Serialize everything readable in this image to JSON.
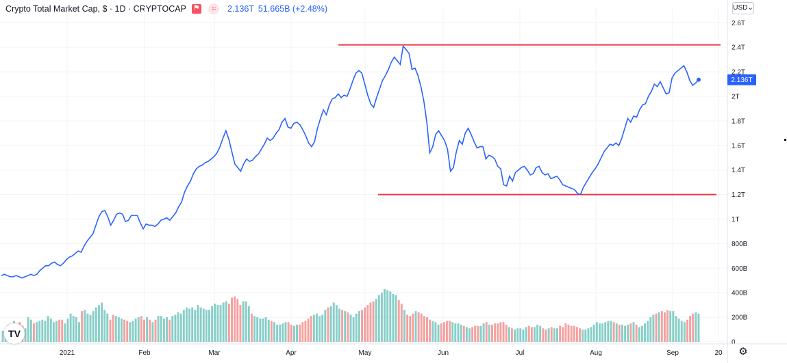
{
  "header": {
    "title": "Crypto Total Market Cap, $ · 1D · CRYPTOCAP",
    "flag_icon": "flag-icon",
    "compare_icon": "compare-icon",
    "price": "2.136T",
    "change": "51.665B (+2.48%)"
  },
  "currency": "USD",
  "last_price_label": "2.136T",
  "logo_text": "TV",
  "colors": {
    "line": "#2962ff",
    "support_resistance": "#f23645",
    "volume_up": "#26a69a",
    "volume_down": "#ef5350",
    "price_tag": "#2962ff"
  },
  "chart_data": {
    "type": "line",
    "x_tick_labels": [
      "2021",
      "Feb",
      "Mar",
      "Apr",
      "May",
      "Jun",
      "Jul",
      "Aug",
      "Sep",
      "20"
    ],
    "y_tick_labels": [
      "0",
      "200B",
      "400B",
      "600B",
      "800B",
      "1T",
      "1.2T",
      "1.4T",
      "1.6T",
      "1.8T",
      "2T",
      "2.2T",
      "2.4T",
      "2.6T"
    ],
    "y_unit": "T (trillion USD)",
    "ylim": [
      0,
      2.6
    ],
    "series": [
      {
        "values": [
          0.54,
          0.55,
          0.54,
          0.53,
          0.53,
          0.54,
          0.53,
          0.52,
          0.53,
          0.54,
          0.55,
          0.54,
          0.55,
          0.58,
          0.6,
          0.62,
          0.62,
          0.64,
          0.65,
          0.63,
          0.62,
          0.64,
          0.67,
          0.69,
          0.7,
          0.72,
          0.74,
          0.73,
          0.78,
          0.82,
          0.85,
          0.88,
          0.95,
          1.02,
          1.06,
          1.07,
          1.02,
          0.95,
          0.99,
          1.04,
          1.05,
          1.04,
          0.98,
          0.99,
          1.03,
          1.03,
          1.03,
          0.97,
          0.92,
          0.96,
          0.95,
          0.95,
          0.94,
          0.96,
          0.99,
          1.0,
          1.01,
          0.99,
          1.02,
          1.05,
          1.1,
          1.14,
          1.22,
          1.27,
          1.31,
          1.37,
          1.41,
          1.43,
          1.44,
          1.46,
          1.47,
          1.49,
          1.51,
          1.54,
          1.59,
          1.66,
          1.72,
          1.65,
          1.55,
          1.45,
          1.42,
          1.39,
          1.45,
          1.49,
          1.47,
          1.48,
          1.51,
          1.53,
          1.57,
          1.61,
          1.66,
          1.64,
          1.66,
          1.7,
          1.73,
          1.79,
          1.82,
          1.75,
          1.74,
          1.78,
          1.79,
          1.77,
          1.73,
          1.68,
          1.62,
          1.59,
          1.63,
          1.74,
          1.82,
          1.89,
          1.85,
          1.93,
          1.98,
          1.99,
          2.02,
          1.99,
          2.01,
          2.0,
          2.06,
          2.13,
          2.19,
          2.21,
          2.19,
          2.1,
          2.01,
          1.94,
          1.91,
          1.99,
          2.06,
          2.13,
          2.17,
          2.22,
          2.28,
          2.32,
          2.29,
          2.26,
          2.41,
          2.38,
          2.35,
          2.22,
          2.23,
          2.17,
          2.08,
          1.96,
          1.79,
          1.54,
          1.59,
          1.69,
          1.72,
          1.68,
          1.64,
          1.57,
          1.39,
          1.42,
          1.55,
          1.64,
          1.61,
          1.7,
          1.74,
          1.69,
          1.63,
          1.58,
          1.59,
          1.59,
          1.49,
          1.52,
          1.51,
          1.49,
          1.43,
          1.41,
          1.28,
          1.27,
          1.35,
          1.31,
          1.38,
          1.4,
          1.42,
          1.43,
          1.4,
          1.36,
          1.37,
          1.42,
          1.43,
          1.38,
          1.36,
          1.37,
          1.33,
          1.34,
          1.35,
          1.32,
          1.28,
          1.27,
          1.26,
          1.25,
          1.24,
          1.21,
          1.2,
          1.26,
          1.3,
          1.34,
          1.38,
          1.41,
          1.45,
          1.5,
          1.55,
          1.58,
          1.61,
          1.6,
          1.62,
          1.6,
          1.66,
          1.74,
          1.82,
          1.79,
          1.84,
          1.83,
          1.89,
          1.93,
          1.94,
          2.0,
          2.04,
          2.1,
          2.08,
          2.12,
          2.07,
          2.02,
          2.03,
          2.15,
          2.19,
          2.21,
          2.23,
          2.25,
          2.2,
          2.13,
          2.09,
          2.11,
          2.136
        ]
      }
    ],
    "volume_series": {
      "name": "Volume",
      "values": [
        90,
        60,
        140,
        130,
        170,
        120,
        160,
        130,
        110,
        200,
        180,
        150,
        160,
        170,
        180,
        170,
        210,
        190,
        160,
        170,
        180,
        180,
        150,
        190,
        230,
        210,
        200,
        160,
        250,
        260,
        230,
        220,
        250,
        280,
        300,
        320,
        260,
        230,
        180,
        220,
        210,
        200,
        190,
        180,
        170,
        160,
        170,
        190,
        200,
        210,
        180,
        200,
        180,
        160,
        180,
        210,
        210,
        190,
        200,
        180,
        210,
        220,
        240,
        230,
        260,
        280,
        270,
        280,
        260,
        300,
        280,
        270,
        260,
        260,
        290,
        310,
        300,
        300,
        320,
        330,
        310,
        360,
        370,
        350,
        300,
        330,
        330,
        290,
        230,
        210,
        200,
        190,
        190,
        200,
        180,
        170,
        160,
        140,
        140,
        150,
        160,
        160,
        140,
        130,
        140,
        140,
        160,
        170,
        190,
        210,
        220,
        230,
        210,
        220,
        260,
        280,
        290,
        320,
        300,
        270,
        260,
        250,
        240,
        220,
        200,
        230,
        250,
        260,
        280,
        300,
        320,
        330,
        350,
        380,
        400,
        430,
        420,
        410,
        390,
        380,
        340,
        310,
        260,
        220,
        210,
        230,
        250,
        240,
        230,
        210,
        200,
        180,
        170,
        160,
        140,
        150,
        160,
        170,
        170,
        160,
        150,
        150,
        140,
        130,
        120,
        110,
        120,
        130,
        130,
        130,
        150,
        160,
        140,
        140,
        150,
        150,
        160,
        160,
        140,
        120,
        110,
        100,
        110,
        110,
        100,
        120,
        130,
        120,
        120,
        140,
        130,
        110,
        100,
        110,
        120,
        110,
        110,
        130,
        120,
        150,
        140,
        130,
        130,
        120,
        110,
        100,
        100,
        110,
        120,
        140,
        160,
        150,
        150,
        160,
        170,
        170,
        160,
        150,
        140,
        140,
        130,
        140,
        150,
        160,
        140,
        120,
        130,
        150,
        170,
        200,
        220,
        230,
        240,
        250,
        240,
        260,
        250,
        250,
        210,
        190,
        170,
        160,
        180,
        210,
        230,
        240,
        230
      ],
      "colors_up_down": [
        "#26a69a",
        "#ef5350"
      ]
    },
    "annotations": [
      {
        "type": "horizontal_line",
        "value": 2.42,
        "label": "resistance"
      },
      {
        "type": "horizontal_line",
        "value": 1.2,
        "label": "support"
      }
    ]
  }
}
